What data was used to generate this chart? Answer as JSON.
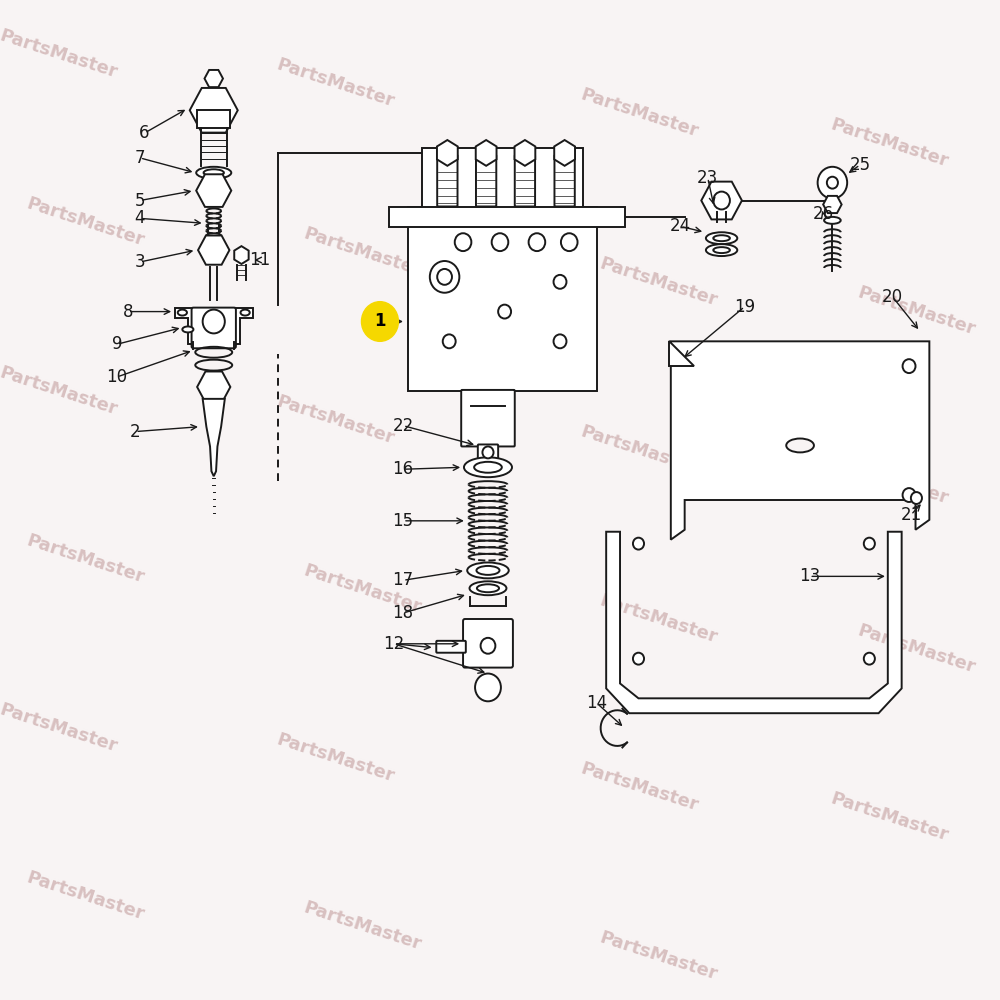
{
  "bg": "#f8f4f4",
  "wm_color": "#d8c0c0",
  "lc": "#1a1a1a",
  "lw": 1.4,
  "lfs": 12,
  "wm_rows": [
    [
      [
        -0.5,
        9.5
      ],
      [
        2.5,
        9.2
      ],
      [
        5.8,
        8.9
      ],
      [
        8.5,
        8.6
      ]
    ],
    [
      [
        -0.2,
        7.8
      ],
      [
        2.8,
        7.5
      ],
      [
        6.0,
        7.2
      ],
      [
        8.8,
        6.9
      ]
    ],
    [
      [
        -0.5,
        6.1
      ],
      [
        2.5,
        5.8
      ],
      [
        5.8,
        5.5
      ],
      [
        8.5,
        5.2
      ]
    ],
    [
      [
        -0.2,
        4.4
      ],
      [
        2.8,
        4.1
      ],
      [
        6.0,
        3.8
      ],
      [
        8.8,
        3.5
      ]
    ],
    [
      [
        -0.5,
        2.7
      ],
      [
        2.5,
        2.4
      ],
      [
        5.8,
        2.1
      ],
      [
        8.5,
        1.8
      ]
    ],
    [
      [
        -0.2,
        1.0
      ],
      [
        2.8,
        0.7
      ],
      [
        6.0,
        0.4
      ]
    ]
  ]
}
